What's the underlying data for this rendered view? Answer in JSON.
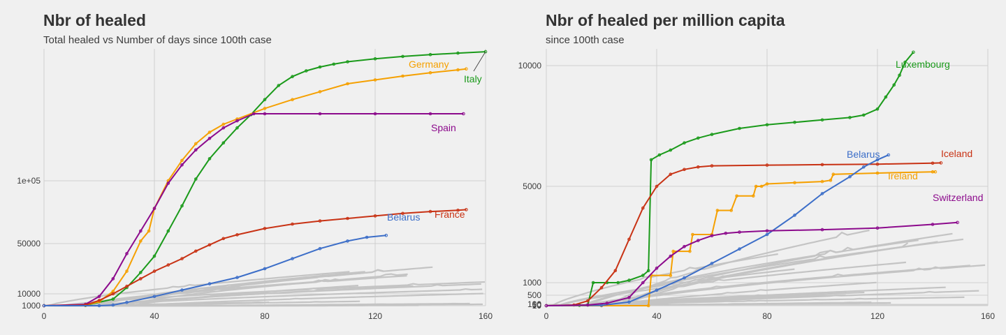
{
  "colors": {
    "background": "#f0f0f0",
    "grid": "#cfcfcf",
    "other_countries": "#c4c4c4",
    "green": "#1a9a1a",
    "orange": "#f5a000",
    "purple": "#8c0a8c",
    "red": "#c83214",
    "blue": "#3c6ec8"
  },
  "chart_data": [
    {
      "type": "line",
      "title": "Nbr of healed",
      "subtitle": "Total healed vs Number of days since 100th case",
      "xlabel": "",
      "ylabel": "",
      "xlim": [
        0,
        160
      ],
      "ylim": [
        0,
        210000
      ],
      "x_ticks": [
        0,
        40,
        80,
        120,
        160
      ],
      "y_ticks": [
        1000,
        10000,
        50000,
        100000
      ],
      "y_tick_labels": [
        "1000",
        "10000",
        "50000",
        "1e+05"
      ],
      "grid": true,
      "legend": "direct labels at line ends",
      "highlighted_series": [
        {
          "name": "Italy",
          "color": "#1a9a1a",
          "points": [
            [
              0,
              100
            ],
            [
              15,
              1200
            ],
            [
              25,
              6000
            ],
            [
              30,
              15000
            ],
            [
              35,
              27000
            ],
            [
              40,
              40000
            ],
            [
              45,
              60000
            ],
            [
              50,
              80000
            ],
            [
              55,
              102000
            ],
            [
              60,
              125000
            ],
            [
              65,
              143000
            ],
            [
              70,
              160000
            ],
            [
              75,
              175000
            ],
            [
              80,
              192000
            ],
            [
              85,
              208000
            ],
            [
              90,
              225000
            ],
            [
              95,
              237000
            ],
            [
              100,
              245000
            ],
            [
              105,
              251000
            ],
            [
              110,
              256000
            ],
            [
              120,
              262000
            ],
            [
              130,
              267000
            ],
            [
              140,
              271000
            ],
            [
              150,
              274000
            ],
            [
              160,
              277000
            ]
          ]
        },
        {
          "name": "Germany",
          "color": "#f5a000",
          "points": [
            [
              0,
              100
            ],
            [
              15,
              1500
            ],
            [
              20,
              4000
            ],
            [
              25,
              12000
            ],
            [
              30,
              28000
            ],
            [
              35,
              52000
            ],
            [
              38,
              60000
            ],
            [
              40,
              78000
            ],
            [
              45,
              100000
            ],
            [
              50,
              123000
            ],
            [
              55,
              142000
            ],
            [
              60,
              155000
            ],
            [
              65,
              164000
            ],
            [
              70,
              170000
            ],
            [
              80,
              182000
            ],
            [
              90,
              192000
            ],
            [
              100,
              201000
            ],
            [
              110,
              210000
            ],
            [
              120,
              218000
            ],
            [
              130,
              226000
            ],
            [
              140,
              233000
            ],
            [
              150,
              239000
            ],
            [
              153,
              241000
            ]
          ]
        },
        {
          "name": "Spain",
          "color": "#8c0a8c",
          "points": [
            [
              0,
              100
            ],
            [
              15,
              2000
            ],
            [
              20,
              8000
            ],
            [
              25,
              22000
            ],
            [
              30,
              42000
            ],
            [
              35,
              60000
            ],
            [
              40,
              78000
            ],
            [
              45,
              98000
            ],
            [
              50,
              118000
            ],
            [
              55,
              135000
            ],
            [
              60,
              148000
            ],
            [
              65,
              160000
            ],
            [
              70,
              168000
            ],
            [
              76,
              176000
            ],
            [
              80,
              176000
            ],
            [
              100,
              176000
            ],
            [
              120,
              176000
            ],
            [
              140,
              176000
            ],
            [
              152,
              176000
            ]
          ]
        },
        {
          "name": "France",
          "color": "#c83214",
          "points": [
            [
              0,
              100
            ],
            [
              15,
              1500
            ],
            [
              20,
              5000
            ],
            [
              25,
              10000
            ],
            [
              30,
              16000
            ],
            [
              35,
              22000
            ],
            [
              40,
              28000
            ],
            [
              45,
              33000
            ],
            [
              50,
              38000
            ],
            [
              55,
              44000
            ],
            [
              60,
              49000
            ],
            [
              65,
              54000
            ],
            [
              70,
              57000
            ],
            [
              80,
              62000
            ],
            [
              90,
              65500
            ],
            [
              100,
              68000
            ],
            [
              110,
              70000
            ],
            [
              120,
              72000
            ],
            [
              130,
              74000
            ],
            [
              140,
              75500
            ],
            [
              150,
              76500
            ],
            [
              153,
              77000
            ]
          ]
        },
        {
          "name": "Belarus",
          "color": "#3c6ec8",
          "points": [
            [
              0,
              100
            ],
            [
              20,
              500
            ],
            [
              25,
              1500
            ],
            [
              30,
              3500
            ],
            [
              40,
              8000
            ],
            [
              50,
              13000
            ],
            [
              60,
              18000
            ],
            [
              70,
              23000
            ],
            [
              80,
              30000
            ],
            [
              90,
              38000
            ],
            [
              100,
              46000
            ],
            [
              110,
              52000
            ],
            [
              117,
              55000
            ],
            [
              124,
              56500
            ]
          ]
        }
      ],
      "other_countries_count": 20,
      "labels": [
        "Germany",
        "Italy",
        "Spain",
        "France",
        "Belarus"
      ]
    },
    {
      "type": "line",
      "title": "Nbr of healed per million capita",
      "subtitle": "since 100th case",
      "xlabel": "",
      "ylabel": "",
      "xlim": [
        0,
        160
      ],
      "ylim": [
        0,
        11000
      ],
      "x_ticks": [
        0,
        40,
        80,
        120,
        160
      ],
      "y_ticks": [
        10,
        50,
        100,
        500,
        1000,
        5000,
        10000
      ],
      "y_tick_labels": [
        "10",
        "50",
        "100",
        "500",
        "1000",
        "5000",
        "10000"
      ],
      "grid": true,
      "legend": "direct labels at line ends",
      "highlighted_series": [
        {
          "name": "Luxembourg",
          "color": "#1a9a1a",
          "points": [
            [
              0,
              0
            ],
            [
              12,
              30
            ],
            [
              15,
              50
            ],
            [
              17,
              1000
            ],
            [
              22,
              1000
            ],
            [
              26,
              1000
            ],
            [
              30,
              1100
            ],
            [
              35,
              1300
            ],
            [
              37,
              1500
            ],
            [
              38,
              6100
            ],
            [
              41,
              6300
            ],
            [
              45,
              6500
            ],
            [
              50,
              6800
            ],
            [
              55,
              7000
            ],
            [
              60,
              7150
            ],
            [
              70,
              7400
            ],
            [
              80,
              7550
            ],
            [
              90,
              7650
            ],
            [
              100,
              7750
            ],
            [
              110,
              7850
            ],
            [
              115,
              7950
            ],
            [
              120,
              8200
            ],
            [
              123,
              8700
            ],
            [
              126,
              9200
            ],
            [
              128,
              9600
            ],
            [
              130,
              10100
            ],
            [
              133,
              10400
            ]
          ]
        },
        {
          "name": "Iceland",
          "color": "#c83214",
          "points": [
            [
              0,
              0
            ],
            [
              10,
              50
            ],
            [
              15,
              250
            ],
            [
              20,
              800
            ],
            [
              25,
              1500
            ],
            [
              30,
              2800
            ],
            [
              35,
              4100
            ],
            [
              40,
              5000
            ],
            [
              45,
              5500
            ],
            [
              50,
              5700
            ],
            [
              55,
              5800
            ],
            [
              60,
              5850
            ],
            [
              80,
              5880
            ],
            [
              100,
              5900
            ],
            [
              120,
              5920
            ],
            [
              140,
              5960
            ],
            [
              143,
              5970
            ]
          ]
        },
        {
          "name": "Ireland",
          "color": "#f5a000",
          "points": [
            [
              0,
              0
            ],
            [
              20,
              0
            ],
            [
              37,
              0
            ],
            [
              38,
              1300
            ],
            [
              45,
              1300
            ],
            [
              46,
              2300
            ],
            [
              52,
              2300
            ],
            [
              53,
              3000
            ],
            [
              60,
              3000
            ],
            [
              62,
              4000
            ],
            [
              67,
              4000
            ],
            [
              69,
              4600
            ],
            [
              75,
              4600
            ],
            [
              76,
              5000
            ],
            [
              78,
              5000
            ],
            [
              80,
              5100
            ],
            [
              90,
              5150
            ],
            [
              100,
              5200
            ],
            [
              103,
              5250
            ],
            [
              104,
              5500
            ],
            [
              120,
              5550
            ],
            [
              140,
              5600
            ],
            [
              141,
              5600
            ]
          ]
        },
        {
          "name": "Belarus",
          "color": "#3c6ec8",
          "points": [
            [
              0,
              0
            ],
            [
              20,
              30
            ],
            [
              30,
              200
            ],
            [
              40,
              700
            ],
            [
              50,
              1200
            ],
            [
              60,
              1800
            ],
            [
              70,
              2400
            ],
            [
              80,
              3000
            ],
            [
              90,
              3800
            ],
            [
              100,
              4700
            ],
            [
              110,
              5400
            ],
            [
              115,
              5800
            ],
            [
              120,
              6100
            ],
            [
              124,
              6300
            ]
          ]
        },
        {
          "name": "Switzerland",
          "color": "#8c0a8c",
          "points": [
            [
              0,
              0
            ],
            [
              15,
              50
            ],
            [
              22,
              150
            ],
            [
              30,
              400
            ],
            [
              35,
              1000
            ],
            [
              40,
              1600
            ],
            [
              45,
              2100
            ],
            [
              50,
              2500
            ],
            [
              55,
              2750
            ],
            [
              60,
              2950
            ],
            [
              65,
              3050
            ],
            [
              70,
              3100
            ],
            [
              80,
              3150
            ],
            [
              100,
              3200
            ],
            [
              120,
              3270
            ],
            [
              140,
              3420
            ],
            [
              149,
              3500
            ]
          ]
        }
      ],
      "other_countries_count": 20,
      "labels": [
        "Luxembourg",
        "Belarus",
        "Iceland",
        "Ireland",
        "Switzerland"
      ]
    }
  ]
}
